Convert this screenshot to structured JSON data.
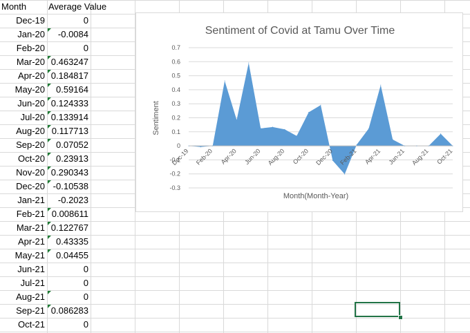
{
  "sheet": {
    "headers": {
      "month": "Month",
      "value": "Average Value"
    },
    "rows": [
      {
        "month": "Dec-19",
        "value": "0"
      },
      {
        "month": "Jan-20",
        "value": "-0.0084"
      },
      {
        "month": "Feb-20",
        "value": "0"
      },
      {
        "month": "Mar-20",
        "value": "0.463247"
      },
      {
        "month": "Apr-20",
        "value": "0.184817"
      },
      {
        "month": "May-20",
        "value": "0.59164"
      },
      {
        "month": "Jun-20",
        "value": "0.124333"
      },
      {
        "month": "Jul-20",
        "value": "0.133914"
      },
      {
        "month": "Aug-20",
        "value": "0.117713"
      },
      {
        "month": "Sep-20",
        "value": "0.07052"
      },
      {
        "month": "Oct-20",
        "value": "0.23913"
      },
      {
        "month": "Nov-20",
        "value": "0.290343"
      },
      {
        "month": "Dec-20",
        "value": "-0.10538"
      },
      {
        "month": "Jan-21",
        "value": "-0.2023"
      },
      {
        "month": "Feb-21",
        "value": "0.008611"
      },
      {
        "month": "Mar-21",
        "value": "0.122767"
      },
      {
        "month": "Apr-21",
        "value": "0.43335"
      },
      {
        "month": "May-21",
        "value": "0.04455"
      },
      {
        "month": "Jun-21",
        "value": "0"
      },
      {
        "month": "Jul-21",
        "value": "0"
      },
      {
        "month": "Aug-21",
        "value": "0"
      },
      {
        "month": "Sep-21",
        "value": "0.086283"
      },
      {
        "month": "Oct-21",
        "value": "0"
      }
    ],
    "flagged_rows": [
      1,
      3,
      4,
      5,
      6,
      7,
      8,
      9,
      10,
      11,
      12,
      14,
      15,
      16,
      17,
      20,
      21
    ]
  },
  "colors": {
    "area_fill": "#5b9bd5",
    "gridline": "#d9d9d9",
    "axis_text": "#595959",
    "title_text": "#595959",
    "selection": "#217346"
  },
  "chart_data": {
    "type": "area",
    "title": "Sentiment of Covid at Tamu Over Time",
    "xlabel": "Month(Month-Year)",
    "ylabel": "Sentiment",
    "categories": [
      "Dec-19",
      "Jan-20",
      "Feb-20",
      "Mar-20",
      "Apr-20",
      "May-20",
      "Jun-20",
      "Jul-20",
      "Aug-20",
      "Sep-20",
      "Oct-20",
      "Nov-20",
      "Dec-20",
      "Jan-21",
      "Feb-21",
      "Mar-21",
      "Apr-21",
      "May-21",
      "Jun-21",
      "Jul-21",
      "Aug-21",
      "Sep-21",
      "Oct-21"
    ],
    "values": [
      0,
      -0.0084,
      0,
      0.463247,
      0.184817,
      0.59164,
      0.124333,
      0.133914,
      0.117713,
      0.07052,
      0.23913,
      0.290343,
      -0.10538,
      -0.2023,
      0.008611,
      0.122767,
      0.43335,
      0.04455,
      0,
      0,
      0,
      0.086283,
      0
    ],
    "x_tick_labels": [
      "Dec-19",
      "Feb-20",
      "Apr-20",
      "Jun-20",
      "Aug-20",
      "Oct-20",
      "Dec-20",
      "Feb-21",
      "Apr-21",
      "Jun-21",
      "Aug-21",
      "Oct-21"
    ],
    "y_ticks": [
      0.7,
      0.6,
      0.5,
      0.4,
      0.3,
      0.2,
      0.1,
      0,
      -0.1,
      -0.2,
      -0.3
    ],
    "y_tick_labels": [
      "0.7",
      "0.6",
      "0.5",
      "0.4",
      "0.3",
      "0.2",
      "0.1",
      "0",
      "-0.1",
      "-0.2",
      "-0.3"
    ],
    "ylim": [
      -0.3,
      0.7
    ],
    "grid": true,
    "legend": "none"
  }
}
